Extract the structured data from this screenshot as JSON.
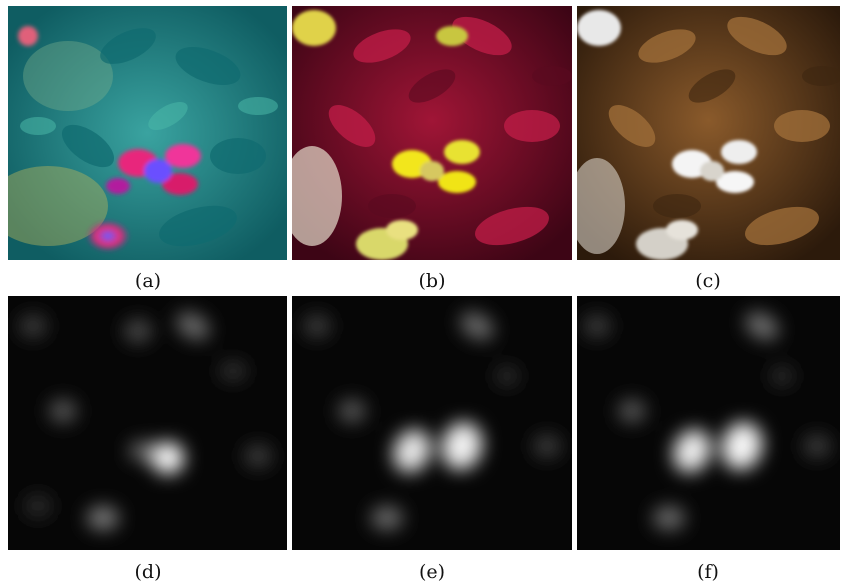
{
  "figure": {
    "panels": [
      {
        "label": "(a)",
        "content": "hue-shifted teal flower photograph"
      },
      {
        "label": "(b)",
        "content": "crimson leaves with yellow flowers"
      },
      {
        "label": "(c)",
        "content": "sepia leaves with white flowers"
      },
      {
        "label": "(d)",
        "content": "grayscale blurred saliency map"
      },
      {
        "label": "(e)",
        "content": "grayscale blurred saliency map"
      },
      {
        "label": "(f)",
        "content": "grayscale blurred saliency map"
      }
    ],
    "colors": {
      "a_bg": "#1f8c86",
      "b_bg": "#8a0f2c",
      "c_bg": "#6b4421",
      "map_bg": "#050505"
    }
  }
}
